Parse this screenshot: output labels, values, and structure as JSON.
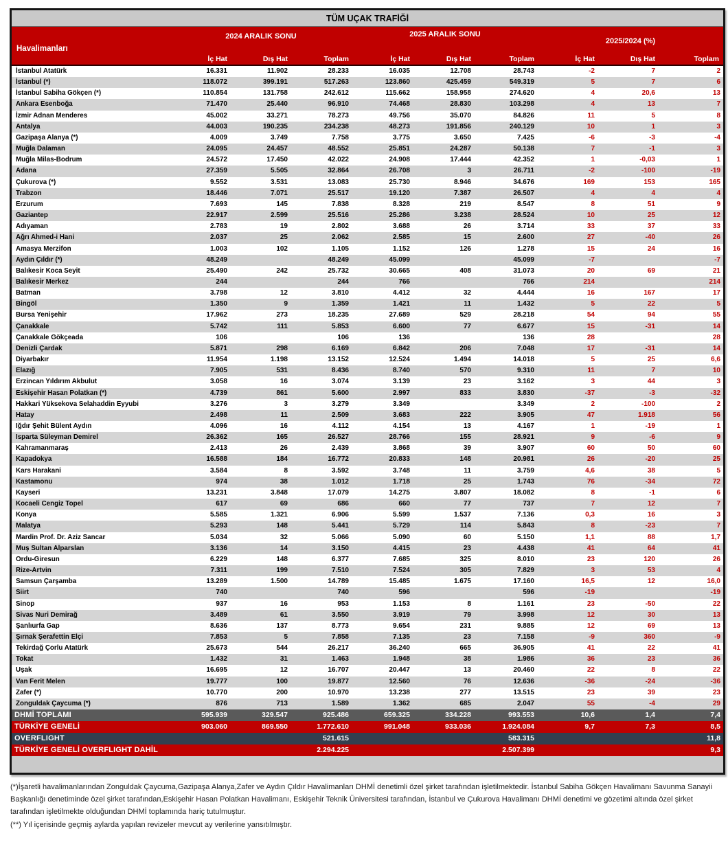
{
  "title": "TÜM UÇAK TRAFİĞİ",
  "header": {
    "airport_col": "Havalimanları",
    "groups": [
      "2024 ARALIK SONU",
      "2025 ARALIK SONU",
      "2025/2024 (%)"
    ],
    "subcols": [
      "İç Hat",
      "Dış Hat",
      "Toplam"
    ]
  },
  "colors": {
    "header_red": "#c00000",
    "titlebar_gray": "#c9c9c9",
    "stripe_gray": "#d5d5d5",
    "summary_gray": "#5a5a5a",
    "summary_dark": "#333f4f",
    "pct_red": "#c00000",
    "border_dark": "#151515"
  },
  "rows": [
    {
      "name": "İstanbul Atatürk",
      "values": [
        "16.331",
        "11.902",
        "28.233",
        "16.035",
        "12.708",
        "28.743",
        "-2",
        "7",
        "2"
      ]
    },
    {
      "name": "İstanbul (*)",
      "values": [
        "118.072",
        "399.191",
        "517.263",
        "123.860",
        "425.459",
        "549.319",
        "5",
        "7",
        "6"
      ]
    },
    {
      "name": "İstanbul Sabiha Gökçen (*)",
      "values": [
        "110.854",
        "131.758",
        "242.612",
        "115.662",
        "158.958",
        "274.620",
        "4",
        "20,6",
        "13"
      ]
    },
    {
      "name": "Ankara Esenboğa",
      "values": [
        "71.470",
        "25.440",
        "96.910",
        "74.468",
        "28.830",
        "103.298",
        "4",
        "13",
        "7"
      ]
    },
    {
      "name": "İzmir Adnan Menderes",
      "values": [
        "45.002",
        "33.271",
        "78.273",
        "49.756",
        "35.070",
        "84.826",
        "11",
        "5",
        "8"
      ]
    },
    {
      "name": "Antalya",
      "values": [
        "44.003",
        "190.235",
        "234.238",
        "48.273",
        "191.856",
        "240.129",
        "10",
        "1",
        "3"
      ]
    },
    {
      "name": "Gazipaşa Alanya (*)",
      "values": [
        "4.009",
        "3.749",
        "7.758",
        "3.775",
        "3.650",
        "7.425",
        "-6",
        "-3",
        "-4"
      ]
    },
    {
      "name": "Muğla Dalaman",
      "values": [
        "24.095",
        "24.457",
        "48.552",
        "25.851",
        "24.287",
        "50.138",
        "7",
        "-1",
        "3"
      ]
    },
    {
      "name": "Muğla Milas-Bodrum",
      "values": [
        "24.572",
        "17.450",
        "42.022",
        "24.908",
        "17.444",
        "42.352",
        "1",
        "-0,03",
        "1"
      ]
    },
    {
      "name": "Adana",
      "values": [
        "27.359",
        "5.505",
        "32.864",
        "26.708",
        "3",
        "26.711",
        "-2",
        "-100",
        "-19"
      ]
    },
    {
      "name": "Çukurova (*)",
      "values": [
        "9.552",
        "3.531",
        "13.083",
        "25.730",
        "8.946",
        "34.676",
        "169",
        "153",
        "165"
      ]
    },
    {
      "name": "Trabzon",
      "values": [
        "18.446",
        "7.071",
        "25.517",
        "19.120",
        "7.387",
        "26.507",
        "4",
        "4",
        "4"
      ]
    },
    {
      "name": "Erzurum",
      "values": [
        "7.693",
        "145",
        "7.838",
        "8.328",
        "219",
        "8.547",
        "8",
        "51",
        "9"
      ]
    },
    {
      "name": "Gaziantep",
      "values": [
        "22.917",
        "2.599",
        "25.516",
        "25.286",
        "3.238",
        "28.524",
        "10",
        "25",
        "12"
      ]
    },
    {
      "name": "Adıyaman",
      "values": [
        "2.783",
        "19",
        "2.802",
        "3.688",
        "26",
        "3.714",
        "33",
        "37",
        "33"
      ]
    },
    {
      "name": "Ağrı Ahmed-i Hani",
      "values": [
        "2.037",
        "25",
        "2.062",
        "2.585",
        "15",
        "2.600",
        "27",
        "-40",
        "26"
      ]
    },
    {
      "name": "Amasya Merzifon",
      "values": [
        "1.003",
        "102",
        "1.105",
        "1.152",
        "126",
        "1.278",
        "15",
        "24",
        "16"
      ]
    },
    {
      "name": "Aydın Çıldır (*)",
      "values": [
        "48.249",
        "",
        "48.249",
        "45.099",
        "",
        "45.099",
        "-7",
        "",
        "-7"
      ]
    },
    {
      "name": "Balıkesir Koca Seyit",
      "values": [
        "25.490",
        "242",
        "25.732",
        "30.665",
        "408",
        "31.073",
        "20",
        "69",
        "21"
      ]
    },
    {
      "name": "Balıkesir Merkez",
      "values": [
        "244",
        "",
        "244",
        "766",
        "",
        "766",
        "214",
        "",
        "214"
      ]
    },
    {
      "name": "Batman",
      "values": [
        "3.798",
        "12",
        "3.810",
        "4.412",
        "32",
        "4.444",
        "16",
        "167",
        "17"
      ]
    },
    {
      "name": "Bingöl",
      "values": [
        "1.350",
        "9",
        "1.359",
        "1.421",
        "11",
        "1.432",
        "5",
        "22",
        "5"
      ]
    },
    {
      "name": "Bursa Yenişehir",
      "values": [
        "17.962",
        "273",
        "18.235",
        "27.689",
        "529",
        "28.218",
        "54",
        "94",
        "55"
      ]
    },
    {
      "name": "Çanakkale",
      "values": [
        "5.742",
        "111",
        "5.853",
        "6.600",
        "77",
        "6.677",
        "15",
        "-31",
        "14"
      ]
    },
    {
      "name": "Çanakkale Gökçeada",
      "values": [
        "106",
        "",
        "106",
        "136",
        "",
        "136",
        "28",
        "",
        "28"
      ]
    },
    {
      "name": "Denizli Çardak",
      "values": [
        "5.871",
        "298",
        "6.169",
        "6.842",
        "206",
        "7.048",
        "17",
        "-31",
        "14"
      ]
    },
    {
      "name": "Diyarbakır",
      "values": [
        "11.954",
        "1.198",
        "13.152",
        "12.524",
        "1.494",
        "14.018",
        "5",
        "25",
        "6,6"
      ]
    },
    {
      "name": "Elazığ",
      "values": [
        "7.905",
        "531",
        "8.436",
        "8.740",
        "570",
        "9.310",
        "11",
        "7",
        "10"
      ]
    },
    {
      "name": "Erzincan Yıldırım Akbulut",
      "values": [
        "3.058",
        "16",
        "3.074",
        "3.139",
        "23",
        "3.162",
        "3",
        "44",
        "3"
      ]
    },
    {
      "name": "Eskişehir Hasan Polatkan (*)",
      "values": [
        "4.739",
        "861",
        "5.600",
        "2.997",
        "833",
        "3.830",
        "-37",
        "-3",
        "-32"
      ]
    },
    {
      "name": "Hakkari Yüksekova Selahaddin Eyyubi",
      "values": [
        "3.276",
        "3",
        "3.279",
        "3.349",
        "",
        "3.349",
        "2",
        "-100",
        "2"
      ]
    },
    {
      "name": "Hatay",
      "values": [
        "2.498",
        "11",
        "2.509",
        "3.683",
        "222",
        "3.905",
        "47",
        "1.918",
        "56"
      ]
    },
    {
      "name": "Iğdır Şehit Bülent Aydın",
      "values": [
        "4.096",
        "16",
        "4.112",
        "4.154",
        "13",
        "4.167",
        "1",
        "-19",
        "1"
      ]
    },
    {
      "name": "Isparta Süleyman Demirel",
      "values": [
        "26.362",
        "165",
        "26.527",
        "28.766",
        "155",
        "28.921",
        "9",
        "-6",
        "9"
      ]
    },
    {
      "name": "Kahramanmaraş",
      "values": [
        "2.413",
        "26",
        "2.439",
        "3.868",
        "39",
        "3.907",
        "60",
        "50",
        "60"
      ]
    },
    {
      "name": "Kapadokya",
      "values": [
        "16.588",
        "184",
        "16.772",
        "20.833",
        "148",
        "20.981",
        "26",
        "-20",
        "25"
      ]
    },
    {
      "name": "Kars Harakani",
      "values": [
        "3.584",
        "8",
        "3.592",
        "3.748",
        "11",
        "3.759",
        "4,6",
        "38",
        "5"
      ]
    },
    {
      "name": "Kastamonu",
      "values": [
        "974",
        "38",
        "1.012",
        "1.718",
        "25",
        "1.743",
        "76",
        "-34",
        "72"
      ]
    },
    {
      "name": "Kayseri",
      "values": [
        "13.231",
        "3.848",
        "17.079",
        "14.275",
        "3.807",
        "18.082",
        "8",
        "-1",
        "6"
      ]
    },
    {
      "name": "Kocaeli Cengiz Topel",
      "values": [
        "617",
        "69",
        "686",
        "660",
        "77",
        "737",
        "7",
        "12",
        "7"
      ]
    },
    {
      "name": "Konya",
      "values": [
        "5.585",
        "1.321",
        "6.906",
        "5.599",
        "1.537",
        "7.136",
        "0,3",
        "16",
        "3"
      ]
    },
    {
      "name": "Malatya",
      "values": [
        "5.293",
        "148",
        "5.441",
        "5.729",
        "114",
        "5.843",
        "8",
        "-23",
        "7"
      ]
    },
    {
      "name": "Mardin Prof. Dr. Aziz Sancar",
      "values": [
        "5.034",
        "32",
        "5.066",
        "5.090",
        "60",
        "5.150",
        "1,1",
        "88",
        "1,7"
      ]
    },
    {
      "name": "Muş Sultan Alparslan",
      "values": [
        "3.136",
        "14",
        "3.150",
        "4.415",
        "23",
        "4.438",
        "41",
        "64",
        "41"
      ]
    },
    {
      "name": "Ordu-Giresun",
      "values": [
        "6.229",
        "148",
        "6.377",
        "7.685",
        "325",
        "8.010",
        "23",
        "120",
        "26"
      ]
    },
    {
      "name": "Rize-Artvin",
      "values": [
        "7.311",
        "199",
        "7.510",
        "7.524",
        "305",
        "7.829",
        "3",
        "53",
        "4"
      ]
    },
    {
      "name": "Samsun Çarşamba",
      "values": [
        "13.289",
        "1.500",
        "14.789",
        "15.485",
        "1.675",
        "17.160",
        "16,5",
        "12",
        "16,0"
      ]
    },
    {
      "name": "Siirt",
      "values": [
        "740",
        "",
        "740",
        "596",
        "",
        "596",
        "-19",
        "",
        "-19"
      ]
    },
    {
      "name": "Sinop",
      "values": [
        "937",
        "16",
        "953",
        "1.153",
        "8",
        "1.161",
        "23",
        "-50",
        "22"
      ]
    },
    {
      "name": "Sivas Nuri Demirağ",
      "values": [
        "3.489",
        "61",
        "3.550",
        "3.919",
        "79",
        "3.998",
        "12",
        "30",
        "13"
      ]
    },
    {
      "name": "Şanlıurfa Gap",
      "values": [
        "8.636",
        "137",
        "8.773",
        "9.654",
        "231",
        "9.885",
        "12",
        "69",
        "13"
      ]
    },
    {
      "name": "Şırnak Şerafettin Elçi",
      "values": [
        "7.853",
        "5",
        "7.858",
        "7.135",
        "23",
        "7.158",
        "-9",
        "360",
        "-9"
      ]
    },
    {
      "name": "Tekirdağ Çorlu Atatürk",
      "values": [
        "25.673",
        "544",
        "26.217",
        "36.240",
        "665",
        "36.905",
        "41",
        "22",
        "41"
      ]
    },
    {
      "name": "Tokat",
      "values": [
        "1.432",
        "31",
        "1.463",
        "1.948",
        "38",
        "1.986",
        "36",
        "23",
        "36"
      ]
    },
    {
      "name": "Uşak",
      "values": [
        "16.695",
        "12",
        "16.707",
        "20.447",
        "13",
        "20.460",
        "22",
        "8",
        "22"
      ]
    },
    {
      "name": "Van Ferit Melen",
      "values": [
        "19.777",
        "100",
        "19.877",
        "12.560",
        "76",
        "12.636",
        "-36",
        "-24",
        "-36"
      ]
    },
    {
      "name": "Zafer (*)",
      "values": [
        "10.770",
        "200",
        "10.970",
        "13.238",
        "277",
        "13.515",
        "23",
        "39",
        "23"
      ]
    },
    {
      "name": "Zonguldak Çaycuma (*)",
      "values": [
        "876",
        "713",
        "1.589",
        "1.362",
        "685",
        "2.047",
        "55",
        "-4",
        "29"
      ]
    }
  ],
  "summary_rows": [
    {
      "name": "DHMİ TOPLAMI",
      "style": "gray",
      "values": [
        "595.939",
        "329.547",
        "925.486",
        "659.325",
        "334.228",
        "993.553",
        "10,6",
        "1,4",
        "7,4"
      ]
    },
    {
      "name": "TÜRKİYE GENELİ",
      "style": "red",
      "values": [
        "903.060",
        "869.550",
        "1.772.610",
        "991.048",
        "933.036",
        "1.924.084",
        "9,7",
        "7,3",
        "8,5"
      ]
    },
    {
      "name": "OVERFLIGHT",
      "style": "dark",
      "values": [
        "",
        "",
        "521.615",
        "",
        "",
        "583.315",
        "",
        "",
        "11,8"
      ]
    },
    {
      "name": "TÜRKİYE GENELİ OVERFLIGHT DAHİL",
      "style": "red",
      "values": [
        "",
        "",
        "2.294.225",
        "",
        "",
        "2.507.399",
        "",
        "",
        "9,3"
      ]
    }
  ],
  "footnotes": [
    "(*)İşaretli havalimanlarından  Zonguldak Çaycuma,Gazipaşa Alanya,Zafer ve Aydın Çıldır Havalimanları DHMİ denetimli özel şirket tarafından işletilmektedir. İstanbul Sabiha Gökçen Havalimanı Savunma Sanayii Başkanlığı denetiminde özel şirket tarafından,Eskişehir Hasan Polatkan Havalimanı, Eskişehir Teknik Üniversitesi tarafından, İstanbul ve Çukurova Havalimanı DHMİ denetimi ve gözetimi altında özel şirket tarafından işletilmekte olduğundan DHMİ toplamında hariç tutulmuştur.",
    "(**) Yıl içerisinde geçmiş aylarda yapılan revizeler mevcut ay verilerine yansıtılmıştır."
  ]
}
